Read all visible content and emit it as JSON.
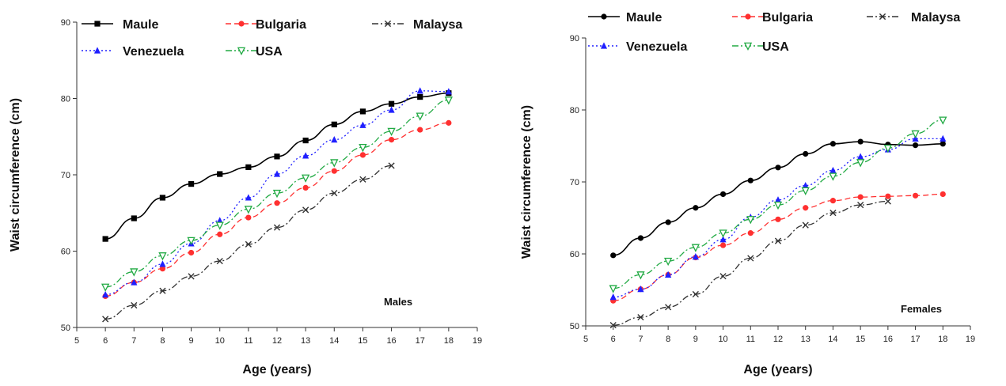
{
  "chart_data": [
    {
      "type": "line",
      "annotation": "Males",
      "xlabel": "Age (years)",
      "ylabel": "Waist circumference (cm)",
      "xlim": [
        5,
        19
      ],
      "ylim": [
        50,
        90
      ],
      "xticks": [
        5,
        6,
        7,
        8,
        9,
        10,
        11,
        12,
        13,
        14,
        15,
        16,
        17,
        18,
        19
      ],
      "yticks": [
        50,
        60,
        70,
        80,
        90
      ],
      "legend_placement": "top",
      "series": [
        {
          "name": "Maule",
          "color": "#000000",
          "marker": "square",
          "dash": "solid",
          "x": [
            6,
            7,
            8,
            9,
            10,
            11,
            12,
            13,
            14,
            15,
            16,
            17,
            18
          ],
          "y": [
            61.6,
            64.3,
            67.0,
            68.8,
            70.1,
            71.0,
            72.4,
            74.5,
            76.6,
            78.3,
            79.3,
            80.2,
            80.7
          ]
        },
        {
          "name": "Bulgaria",
          "color": "#ff3030",
          "marker": "circle",
          "dash": "dash",
          "x": [
            6,
            7,
            8,
            9,
            10,
            11,
            12,
            13,
            14,
            15,
            16,
            17,
            18
          ],
          "y": [
            54.1,
            55.9,
            57.7,
            59.8,
            62.2,
            64.4,
            66.3,
            68.3,
            70.5,
            72.6,
            74.6,
            75.9,
            76.8
          ]
        },
        {
          "name": "Malaysa",
          "color": "#333333",
          "marker": "x",
          "dash": "dashdot",
          "x": [
            6,
            7,
            8,
            9,
            10,
            11,
            12,
            13,
            14,
            15,
            16
          ],
          "y": [
            51.1,
            52.9,
            54.8,
            56.7,
            58.7,
            60.9,
            63.1,
            65.4,
            67.6,
            69.4,
            71.2
          ]
        },
        {
          "name": "Venezuela",
          "color": "#2020ff",
          "marker": "triangle",
          "dash": "dot",
          "x": [
            6,
            7,
            8,
            9,
            10,
            11,
            12,
            13,
            14,
            15,
            16,
            17,
            18
          ],
          "y": [
            54.3,
            55.9,
            58.3,
            61.0,
            64.0,
            67.0,
            70.1,
            72.5,
            74.6,
            76.5,
            78.5,
            81.0,
            80.9
          ]
        },
        {
          "name": "USA",
          "color": "#22aa44",
          "marker": "triangle-down",
          "dash": "dashdot",
          "x": [
            6,
            7,
            8,
            9,
            10,
            11,
            12,
            13,
            14,
            15,
            16,
            17,
            18
          ],
          "y": [
            55.3,
            57.3,
            59.4,
            61.4,
            63.4,
            65.5,
            67.6,
            69.6,
            71.6,
            73.6,
            75.7,
            77.7,
            79.8
          ]
        }
      ]
    },
    {
      "type": "line",
      "annotation": "Females",
      "xlabel": "Age (years)",
      "ylabel": "Waist circumference (cm)",
      "xlim": [
        5,
        19
      ],
      "ylim": [
        50,
        90
      ],
      "xticks": [
        5,
        6,
        7,
        8,
        9,
        10,
        11,
        12,
        13,
        14,
        15,
        16,
        17,
        18,
        19
      ],
      "yticks": [
        50,
        60,
        70,
        80,
        90
      ],
      "legend_placement": "top",
      "series": [
        {
          "name": "Maule",
          "color": "#000000",
          "marker": "circle",
          "dash": "solid",
          "x": [
            6,
            7,
            8,
            9,
            10,
            11,
            12,
            13,
            14,
            15,
            16,
            17,
            18
          ],
          "y": [
            59.8,
            62.2,
            64.4,
            66.4,
            68.3,
            70.2,
            72.0,
            73.9,
            75.3,
            75.6,
            75.2,
            75.1,
            75.3
          ]
        },
        {
          "name": "Bulgaria",
          "color": "#ff3030",
          "marker": "circle",
          "dash": "dash",
          "x": [
            6,
            7,
            8,
            9,
            10,
            11,
            12,
            13,
            14,
            15,
            16,
            17,
            18
          ],
          "y": [
            53.5,
            55.1,
            57.1,
            59.5,
            61.2,
            62.9,
            64.8,
            66.4,
            67.4,
            67.9,
            68.0,
            68.1,
            68.3
          ]
        },
        {
          "name": "Malaysa",
          "color": "#333333",
          "marker": "x",
          "dash": "dashdot",
          "x": [
            6,
            7,
            8,
            9,
            10,
            11,
            12,
            13,
            14,
            15,
            16
          ],
          "y": [
            50.1,
            51.2,
            52.6,
            54.4,
            56.9,
            59.4,
            61.8,
            64.0,
            65.7,
            66.8,
            67.3
          ]
        },
        {
          "name": "Venezuela",
          "color": "#2020ff",
          "marker": "triangle",
          "dash": "dot",
          "x": [
            6,
            7,
            8,
            9,
            10,
            11,
            12,
            13,
            14,
            15,
            16,
            17,
            18
          ],
          "y": [
            54.0,
            55.1,
            57.1,
            59.6,
            62.0,
            65.1,
            67.5,
            69.5,
            71.6,
            73.5,
            74.5,
            76.0,
            76.0
          ]
        },
        {
          "name": "USA",
          "color": "#22aa44",
          "marker": "triangle-down",
          "dash": "dashdot",
          "x": [
            6,
            7,
            8,
            9,
            10,
            11,
            12,
            13,
            14,
            15,
            16,
            17,
            18
          ],
          "y": [
            55.2,
            57.1,
            59.0,
            60.9,
            62.9,
            64.8,
            66.8,
            68.8,
            70.8,
            72.7,
            74.7,
            76.7,
            78.6
          ]
        }
      ]
    }
  ]
}
